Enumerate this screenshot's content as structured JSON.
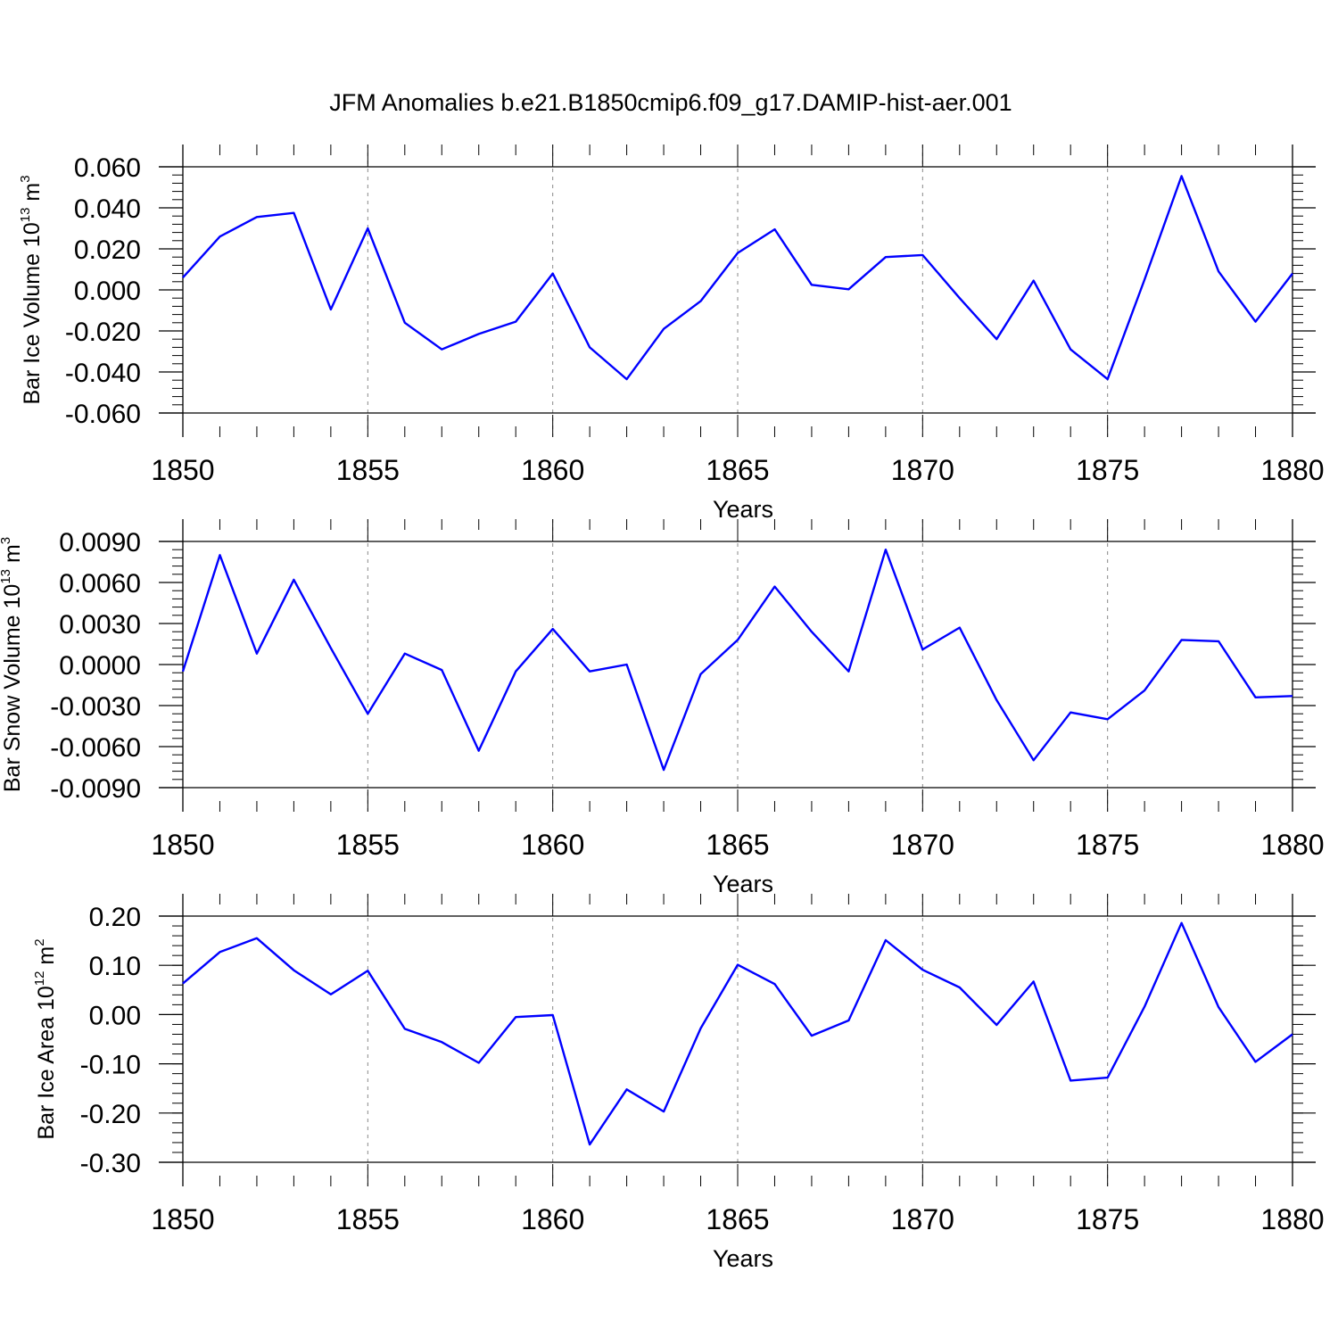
{
  "title": "JFM Anomalies b.e21.B1850cmip6.f09_g17.DAMIP-hist-aer.001",
  "colors": {
    "line": "#0000ff",
    "axis": "#000000",
    "grid": "#888888"
  },
  "chart_data": [
    {
      "type": "line",
      "ylabel_main": "Bar Ice Volume 10",
      "ylabel_sup": "13",
      "ylabel_unit": " m",
      "ylabel_unit_sup": "3",
      "xlabel": "Years",
      "xlim": [
        1850,
        1880
      ],
      "ylim": [
        -0.06,
        0.06
      ],
      "x_ticks": [
        "1850",
        "1855",
        "1860",
        "1865",
        "1870",
        "1875",
        "1880"
      ],
      "y_ticks": [
        "0.060",
        "0.040",
        "0.020",
        "0.000",
        "-0.020",
        "-0.040",
        "-0.060"
      ],
      "grid": "dashed vertical at major x ticks",
      "x": [
        1850,
        1851,
        1852,
        1853,
        1854,
        1855,
        1856,
        1857,
        1858,
        1859,
        1860,
        1861,
        1862,
        1863,
        1864,
        1865,
        1866,
        1867,
        1868,
        1869,
        1870,
        1871,
        1872,
        1873,
        1874,
        1875,
        1876,
        1877,
        1878,
        1879,
        1880
      ],
      "values": [
        0.006,
        0.026,
        0.0355,
        0.0375,
        -0.0095,
        0.03,
        -0.016,
        -0.029,
        -0.0215,
        -0.0155,
        0.008,
        -0.028,
        -0.0435,
        -0.019,
        -0.0055,
        0.018,
        0.0295,
        0.0025,
        0.0003,
        0.016,
        0.017,
        -0.004,
        -0.024,
        0.0045,
        -0.029,
        -0.0435,
        0.005,
        0.0555,
        0.009,
        -0.0155,
        0.008
      ]
    },
    {
      "type": "line",
      "ylabel_main": "Bar Snow Volume 10",
      "ylabel_sup": "13",
      "ylabel_unit": " m",
      "ylabel_unit_sup": "3",
      "xlabel": "Years",
      "xlim": [
        1850,
        1880
      ],
      "ylim": [
        -0.009,
        0.009
      ],
      "x_ticks": [
        "1850",
        "1855",
        "1860",
        "1865",
        "1870",
        "1875",
        "1880"
      ],
      "y_ticks": [
        "0.0090",
        "0.0060",
        "0.0030",
        "0.0000",
        "-0.0030",
        "-0.0060",
        "-0.0090"
      ],
      "grid": "dashed vertical at major x ticks",
      "x": [
        1850,
        1851,
        1852,
        1853,
        1854,
        1855,
        1856,
        1857,
        1858,
        1859,
        1860,
        1861,
        1862,
        1863,
        1864,
        1865,
        1866,
        1867,
        1868,
        1869,
        1870,
        1871,
        1872,
        1873,
        1874,
        1875,
        1876,
        1877,
        1878,
        1879,
        1880
      ],
      "values": [
        -0.0005,
        0.008,
        0.0008,
        0.0062,
        0.0012,
        -0.0036,
        0.0008,
        -0.0004,
        -0.0063,
        -0.0005,
        0.0026,
        -0.0005,
        0.0,
        -0.0077,
        -0.0007,
        0.0018,
        0.0057,
        0.0024,
        -0.0005,
        0.0084,
        0.0011,
        0.0027,
        -0.0026,
        -0.007,
        -0.0035,
        -0.004,
        -0.0019,
        0.0018,
        0.0017,
        -0.0024,
        -0.0023
      ]
    },
    {
      "type": "line",
      "ylabel_main": "Bar Ice Area 10",
      "ylabel_sup": "12",
      "ylabel_unit": " m",
      "ylabel_unit_sup": "2",
      "xlabel": "Years",
      "xlim": [
        1850,
        1880
      ],
      "ylim": [
        -0.3,
        0.2
      ],
      "x_ticks": [
        "1850",
        "1855",
        "1860",
        "1865",
        "1870",
        "1875",
        "1880"
      ],
      "y_ticks": [
        "0.20",
        "0.10",
        "0.00",
        "-0.10",
        "-0.20",
        "-0.30"
      ],
      "grid": "dashed vertical at major x ticks",
      "x": [
        1850,
        1851,
        1852,
        1853,
        1854,
        1855,
        1856,
        1857,
        1858,
        1859,
        1860,
        1861,
        1862,
        1863,
        1864,
        1865,
        1866,
        1867,
        1868,
        1869,
        1870,
        1871,
        1872,
        1873,
        1874,
        1875,
        1876,
        1877,
        1878,
        1879,
        1880
      ],
      "values": [
        0.063,
        0.127,
        0.155,
        0.09,
        0.041,
        0.089,
        -0.029,
        -0.056,
        -0.098,
        -0.005,
        -0.001,
        -0.264,
        -0.152,
        -0.197,
        -0.028,
        0.101,
        0.062,
        -0.043,
        -0.012,
        0.151,
        0.091,
        0.055,
        -0.021,
        0.067,
        -0.134,
        -0.128,
        0.016,
        0.186,
        0.015,
        -0.096,
        -0.04
      ]
    }
  ]
}
